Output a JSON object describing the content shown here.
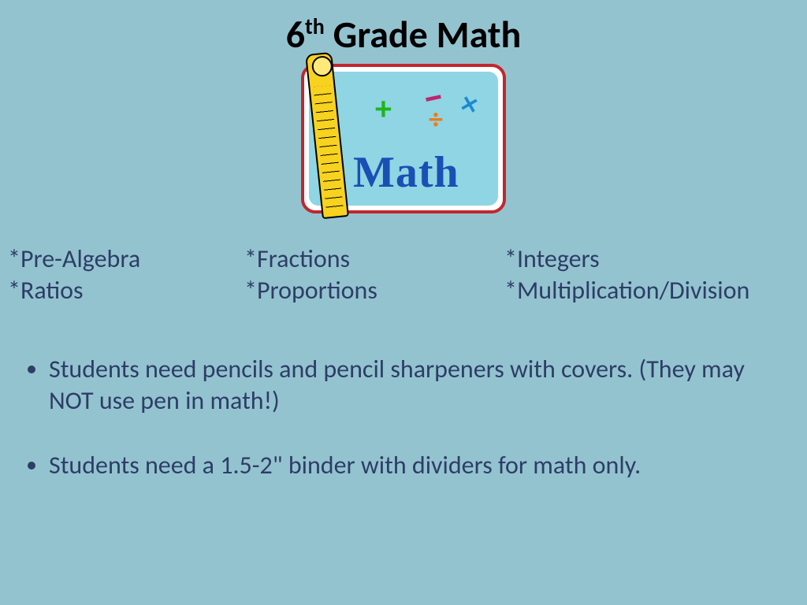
{
  "title": {
    "num": "6",
    "sup": "th",
    "rest": " Grade Math"
  },
  "clipart": {
    "word": "Math",
    "symbols": {
      "plus": "+",
      "minus": "–",
      "div": "÷",
      "times": "×"
    },
    "colors": {
      "border": "#c1272d",
      "inner_bg": "#8fd5e3",
      "ruler": "#f7d21e",
      "word": "#1a4fb5",
      "plus": "#1db51a",
      "minus": "#c12370",
      "div": "#ef7b1a",
      "times": "#1a8bd1"
    }
  },
  "topics": {
    "col1": [
      "*Pre-Algebra",
      "*Ratios"
    ],
    "col2": [
      "*Fractions",
      "*Proportions"
    ],
    "col3": [
      "*Integers",
      "*Multiplication/Division"
    ]
  },
  "bullets": [
    "Students need pencils and pencil sharpeners with covers. (They may NOT use pen in math!)",
    "Students need a 1.5-2\" binder with dividers for math only."
  ],
  "style": {
    "background": "#94c3d0",
    "text_color": "#2d3e66",
    "title_color": "#000000",
    "title_fontsize": 48,
    "body_fontsize": 32,
    "font_family": "Calibri"
  }
}
